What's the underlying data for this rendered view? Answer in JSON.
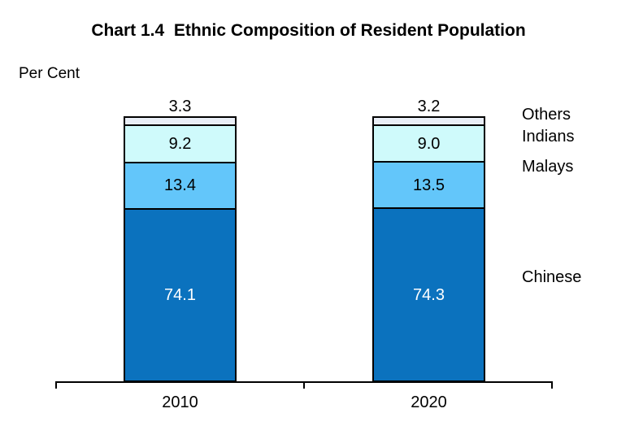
{
  "chart_data": {
    "type": "bar",
    "stacked": true,
    "title": "Chart 1.4  Ethnic Composition of Resident Population",
    "ylabel": "Per Cent",
    "categories": [
      "2010",
      "2020"
    ],
    "series": [
      {
        "name": "Chinese",
        "values": [
          74.1,
          74.3
        ],
        "color": "#0B72BE",
        "value_label_color": "#FFFFFF",
        "value_label_position": "inside"
      },
      {
        "name": "Malays",
        "values": [
          13.4,
          13.5
        ],
        "color": "#63C6FA",
        "value_label_color": "#000000",
        "value_label_position": "inside"
      },
      {
        "name": "Indians",
        "values": [
          9.2,
          9.0
        ],
        "color": "#CFFAFB",
        "value_label_color": "#000000",
        "value_label_position": "inside"
      },
      {
        "name": "Others",
        "values": [
          3.3,
          3.2
        ],
        "color": "#E9EEF6",
        "value_label_color": "#000000",
        "value_label_position": "above"
      }
    ],
    "ylim": [
      0,
      100
    ],
    "grid": false,
    "legend_position": "right",
    "value_decimals": 1,
    "axis_color": "#000000",
    "background_color": "#FFFFFF"
  }
}
